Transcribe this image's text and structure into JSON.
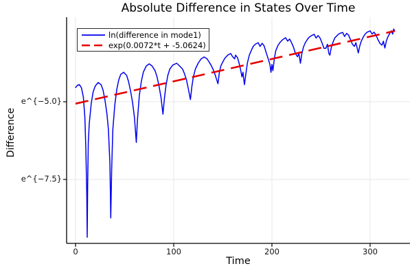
{
  "title": "Absolute Difference in States Over Time",
  "colors": {
    "series_blue": "#0000ee",
    "fit_red": "#e60000",
    "grid": "#e7e7e7",
    "spine": "#000000",
    "text": "#000000"
  },
  "legend": {
    "position": "top-left",
    "items": [
      {
        "label": "ln(difference in mode1)",
        "color": "#0000ee",
        "style": "solid"
      },
      {
        "label": "exp(0.0072*t + -5.0624)",
        "color": "#e60000",
        "style": "dashed"
      }
    ]
  },
  "chart_data": {
    "type": "line",
    "title": "Absolute Difference in States Over Time",
    "xlabel": "Time",
    "ylabel": "Difference",
    "xlim": [
      -9,
      341
    ],
    "ylim_ln": [
      -9.56,
      -2.28
    ],
    "x_ticks": [
      0,
      100,
      200,
      300
    ],
    "x_tick_labels": [
      "0",
      "100",
      "200",
      "300"
    ],
    "y_ticks_ln": [
      -5.0,
      -7.5
    ],
    "y_tick_labels": [
      "e^{−5.0}",
      "e^{−7.5}"
    ],
    "grid": true,
    "legend_position": "top-left",
    "series": [
      {
        "name": "ln(difference in mode1)",
        "color": "#0000ee",
        "style": "solid",
        "points": [
          [
            0,
            -4.54
          ],
          [
            2,
            -4.47
          ],
          [
            4,
            -4.45
          ],
          [
            6,
            -4.55
          ],
          [
            8,
            -4.85
          ],
          [
            9.5,
            -5.5
          ],
          [
            10.5,
            -6.5
          ],
          [
            11.5,
            -8.0
          ],
          [
            11.9,
            -9.36
          ],
          [
            12.4,
            -7.6
          ],
          [
            13,
            -6.3
          ],
          [
            14,
            -5.7
          ],
          [
            16,
            -5.05
          ],
          [
            18,
            -4.68
          ],
          [
            20,
            -4.5
          ],
          [
            23,
            -4.38
          ],
          [
            26,
            -4.45
          ],
          [
            28,
            -4.62
          ],
          [
            30,
            -4.95
          ],
          [
            32,
            -5.4
          ],
          [
            33.5,
            -5.9
          ],
          [
            35,
            -7.0
          ],
          [
            35.9,
            -8.74
          ],
          [
            36.8,
            -7.2
          ],
          [
            38,
            -5.9
          ],
          [
            40,
            -5.1
          ],
          [
            42,
            -4.6
          ],
          [
            44,
            -4.3
          ],
          [
            46,
            -4.12
          ],
          [
            49,
            -4.05
          ],
          [
            52,
            -4.15
          ],
          [
            54,
            -4.35
          ],
          [
            56,
            -4.65
          ],
          [
            58,
            -5.0
          ],
          [
            60,
            -5.5
          ],
          [
            61.9,
            -6.31
          ],
          [
            63,
            -5.6
          ],
          [
            65,
            -4.8
          ],
          [
            67,
            -4.35
          ],
          [
            69,
            -4.05
          ],
          [
            72,
            -3.85
          ],
          [
            75,
            -3.78
          ],
          [
            78,
            -3.85
          ],
          [
            81,
            -4.0
          ],
          [
            83,
            -4.2
          ],
          [
            85,
            -4.5
          ],
          [
            87,
            -4.85
          ],
          [
            89,
            -5.4
          ],
          [
            90.5,
            -4.9
          ],
          [
            92,
            -4.5
          ],
          [
            94,
            -4.15
          ],
          [
            96,
            -3.95
          ],
          [
            99,
            -3.82
          ],
          [
            103,
            -3.76
          ],
          [
            106,
            -3.85
          ],
          [
            109,
            -3.95
          ],
          [
            111,
            -4.1
          ],
          [
            113,
            -4.3
          ],
          [
            115,
            -4.6
          ],
          [
            117,
            -4.93
          ],
          [
            118.5,
            -4.5
          ],
          [
            120,
            -4.2
          ],
          [
            122,
            -3.95
          ],
          [
            125,
            -3.75
          ],
          [
            128,
            -3.62
          ],
          [
            131,
            -3.56
          ],
          [
            134,
            -3.62
          ],
          [
            136,
            -3.72
          ],
          [
            138,
            -3.82
          ],
          [
            140,
            -3.95
          ],
          [
            142,
            -4.12
          ],
          [
            145,
            -4.42
          ],
          [
            146.5,
            -4.05
          ],
          [
            148,
            -3.85
          ],
          [
            150,
            -3.72
          ],
          [
            152,
            -3.6
          ],
          [
            155,
            -3.5
          ],
          [
            158,
            -3.45
          ],
          [
            160,
            -3.55
          ],
          [
            162,
            -3.62
          ],
          [
            163,
            -3.5
          ],
          [
            165,
            -3.58
          ],
          [
            166.5,
            -3.75
          ],
          [
            168,
            -3.95
          ],
          [
            169.5,
            -4.2
          ],
          [
            170.5,
            -4.05
          ],
          [
            172,
            -4.45
          ],
          [
            173.5,
            -4.1
          ],
          [
            175,
            -3.75
          ],
          [
            177,
            -3.5
          ],
          [
            179,
            -3.35
          ],
          [
            181,
            -3.22
          ],
          [
            183,
            -3.15
          ],
          [
            186,
            -3.1
          ],
          [
            188,
            -3.22
          ],
          [
            190,
            -3.12
          ],
          [
            192,
            -3.2
          ],
          [
            194,
            -3.4
          ],
          [
            196,
            -3.6
          ],
          [
            198,
            -3.8
          ],
          [
            199,
            -4.05
          ],
          [
            200,
            -3.8
          ],
          [
            201,
            -4.0
          ],
          [
            202.5,
            -3.6
          ],
          [
            204,
            -3.35
          ],
          [
            206,
            -3.2
          ],
          [
            208,
            -3.1
          ],
          [
            211,
            -3.0
          ],
          [
            214,
            -2.94
          ],
          [
            216,
            -3.05
          ],
          [
            218,
            -2.98
          ],
          [
            220,
            -3.1
          ],
          [
            222,
            -3.25
          ],
          [
            224,
            -3.45
          ],
          [
            226,
            -3.55
          ],
          [
            227.5,
            -3.45
          ],
          [
            229,
            -3.76
          ],
          [
            230.5,
            -3.45
          ],
          [
            232,
            -3.25
          ],
          [
            234,
            -3.1
          ],
          [
            236,
            -3.0
          ],
          [
            238,
            -2.92
          ],
          [
            241,
            -2.86
          ],
          [
            243,
            -2.83
          ],
          [
            245,
            -2.95
          ],
          [
            247,
            -2.87
          ],
          [
            249,
            -2.95
          ],
          [
            251,
            -3.1
          ],
          [
            253,
            -3.28
          ],
          [
            255,
            -3.28
          ],
          [
            256.5,
            -3.15
          ],
          [
            258,
            -3.45
          ],
          [
            259,
            -3.5
          ],
          [
            260.5,
            -3.25
          ],
          [
            262,
            -3.1
          ],
          [
            264,
            -2.95
          ],
          [
            266,
            -2.88
          ],
          [
            268,
            -2.82
          ],
          [
            270,
            -2.79
          ],
          [
            272,
            -2.77
          ],
          [
            274,
            -2.9
          ],
          [
            276,
            -2.8
          ],
          [
            278,
            -2.85
          ],
          [
            280,
            -3.0
          ],
          [
            282,
            -3.15
          ],
          [
            284,
            -3.22
          ],
          [
            285.5,
            -3.1
          ],
          [
            288,
            -3.43
          ],
          [
            289.5,
            -3.2
          ],
          [
            291,
            -3.05
          ],
          [
            293,
            -2.92
          ],
          [
            295,
            -2.82
          ],
          [
            297,
            -2.76
          ],
          [
            300,
            -2.72
          ],
          [
            302,
            -2.82
          ],
          [
            304,
            -2.76
          ],
          [
            306,
            -2.85
          ],
          [
            308,
            -3.0
          ],
          [
            310,
            -3.12
          ],
          [
            312,
            -3.18
          ],
          [
            313.5,
            -3.05
          ],
          [
            315,
            -3.27
          ],
          [
            316.5,
            -3.05
          ],
          [
            318,
            -2.92
          ],
          [
            320,
            -2.8
          ],
          [
            321.5,
            -2.72
          ],
          [
            323,
            -2.82
          ],
          [
            324,
            -2.66
          ],
          [
            325,
            -2.72
          ]
        ]
      },
      {
        "name": "exp(0.0072*t + -5.0624)",
        "color": "#e60000",
        "style": "dashed",
        "fit": {
          "slope": 0.0072,
          "intercept": -5.0624,
          "t_start": 0,
          "t_end": 325
        }
      }
    ]
  }
}
